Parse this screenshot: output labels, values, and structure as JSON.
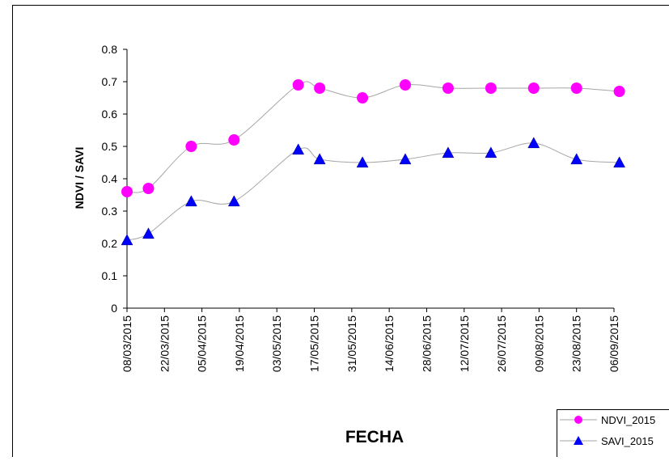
{
  "chart_data": {
    "type": "line",
    "title": "",
    "xlabel": "FECHA",
    "ylabel": "NDVI / SAVI",
    "ylim": [
      0,
      0.8
    ],
    "yticks": [
      "0",
      "0.1",
      "0.2",
      "0.3",
      "0.4",
      "0.5",
      "0.6",
      "0.7",
      "0.8"
    ],
    "x_axis_type": "date",
    "xlim": [
      "08/03/2015",
      "06/09/2015"
    ],
    "xticks": [
      "08/03/2015",
      "22/03/2015",
      "05/04/2015",
      "19/04/2015",
      "03/05/2015",
      "17/05/2015",
      "31/05/2015",
      "14/06/2015",
      "28/06/2015",
      "12/07/2015",
      "26/07/2015",
      "09/08/2015",
      "23/08/2015",
      "06/09/2015"
    ],
    "grid": false,
    "legend_position": "bottom-right",
    "series": [
      {
        "name": "NDVI_2015",
        "marker": "circle",
        "color": "#ff00ff",
        "line_color": "#a6a6a6",
        "points": [
          {
            "x": "08/03/2015",
            "y": 0.36
          },
          {
            "x": "16/03/2015",
            "y": 0.37
          },
          {
            "x": "01/04/2015",
            "y": 0.5
          },
          {
            "x": "17/04/2015",
            "y": 0.52
          },
          {
            "x": "11/05/2015",
            "y": 0.69
          },
          {
            "x": "19/05/2015",
            "y": 0.68
          },
          {
            "x": "04/06/2015",
            "y": 0.65
          },
          {
            "x": "20/06/2015",
            "y": 0.69
          },
          {
            "x": "06/07/2015",
            "y": 0.68
          },
          {
            "x": "22/07/2015",
            "y": 0.68
          },
          {
            "x": "07/08/2015",
            "y": 0.68
          },
          {
            "x": "23/08/2015",
            "y": 0.68
          },
          {
            "x": "08/09/2015",
            "y": 0.67
          }
        ]
      },
      {
        "name": "SAVI_2015",
        "marker": "triangle",
        "color": "#0000ff",
        "line_color": "#a6a6a6",
        "points": [
          {
            "x": "08/03/2015",
            "y": 0.21
          },
          {
            "x": "16/03/2015",
            "y": 0.23
          },
          {
            "x": "01/04/2015",
            "y": 0.33
          },
          {
            "x": "17/04/2015",
            "y": 0.33
          },
          {
            "x": "11/05/2015",
            "y": 0.49
          },
          {
            "x": "19/05/2015",
            "y": 0.46
          },
          {
            "x": "04/06/2015",
            "y": 0.45
          },
          {
            "x": "20/06/2015",
            "y": 0.46
          },
          {
            "x": "06/07/2015",
            "y": 0.48
          },
          {
            "x": "22/07/2015",
            "y": 0.48
          },
          {
            "x": "07/08/2015",
            "y": 0.51
          },
          {
            "x": "23/08/2015",
            "y": 0.46
          },
          {
            "x": "08/09/2015",
            "y": 0.45
          }
        ]
      }
    ]
  },
  "legend": {
    "items": [
      "NDVI_2015",
      "SAVI_2015"
    ]
  }
}
